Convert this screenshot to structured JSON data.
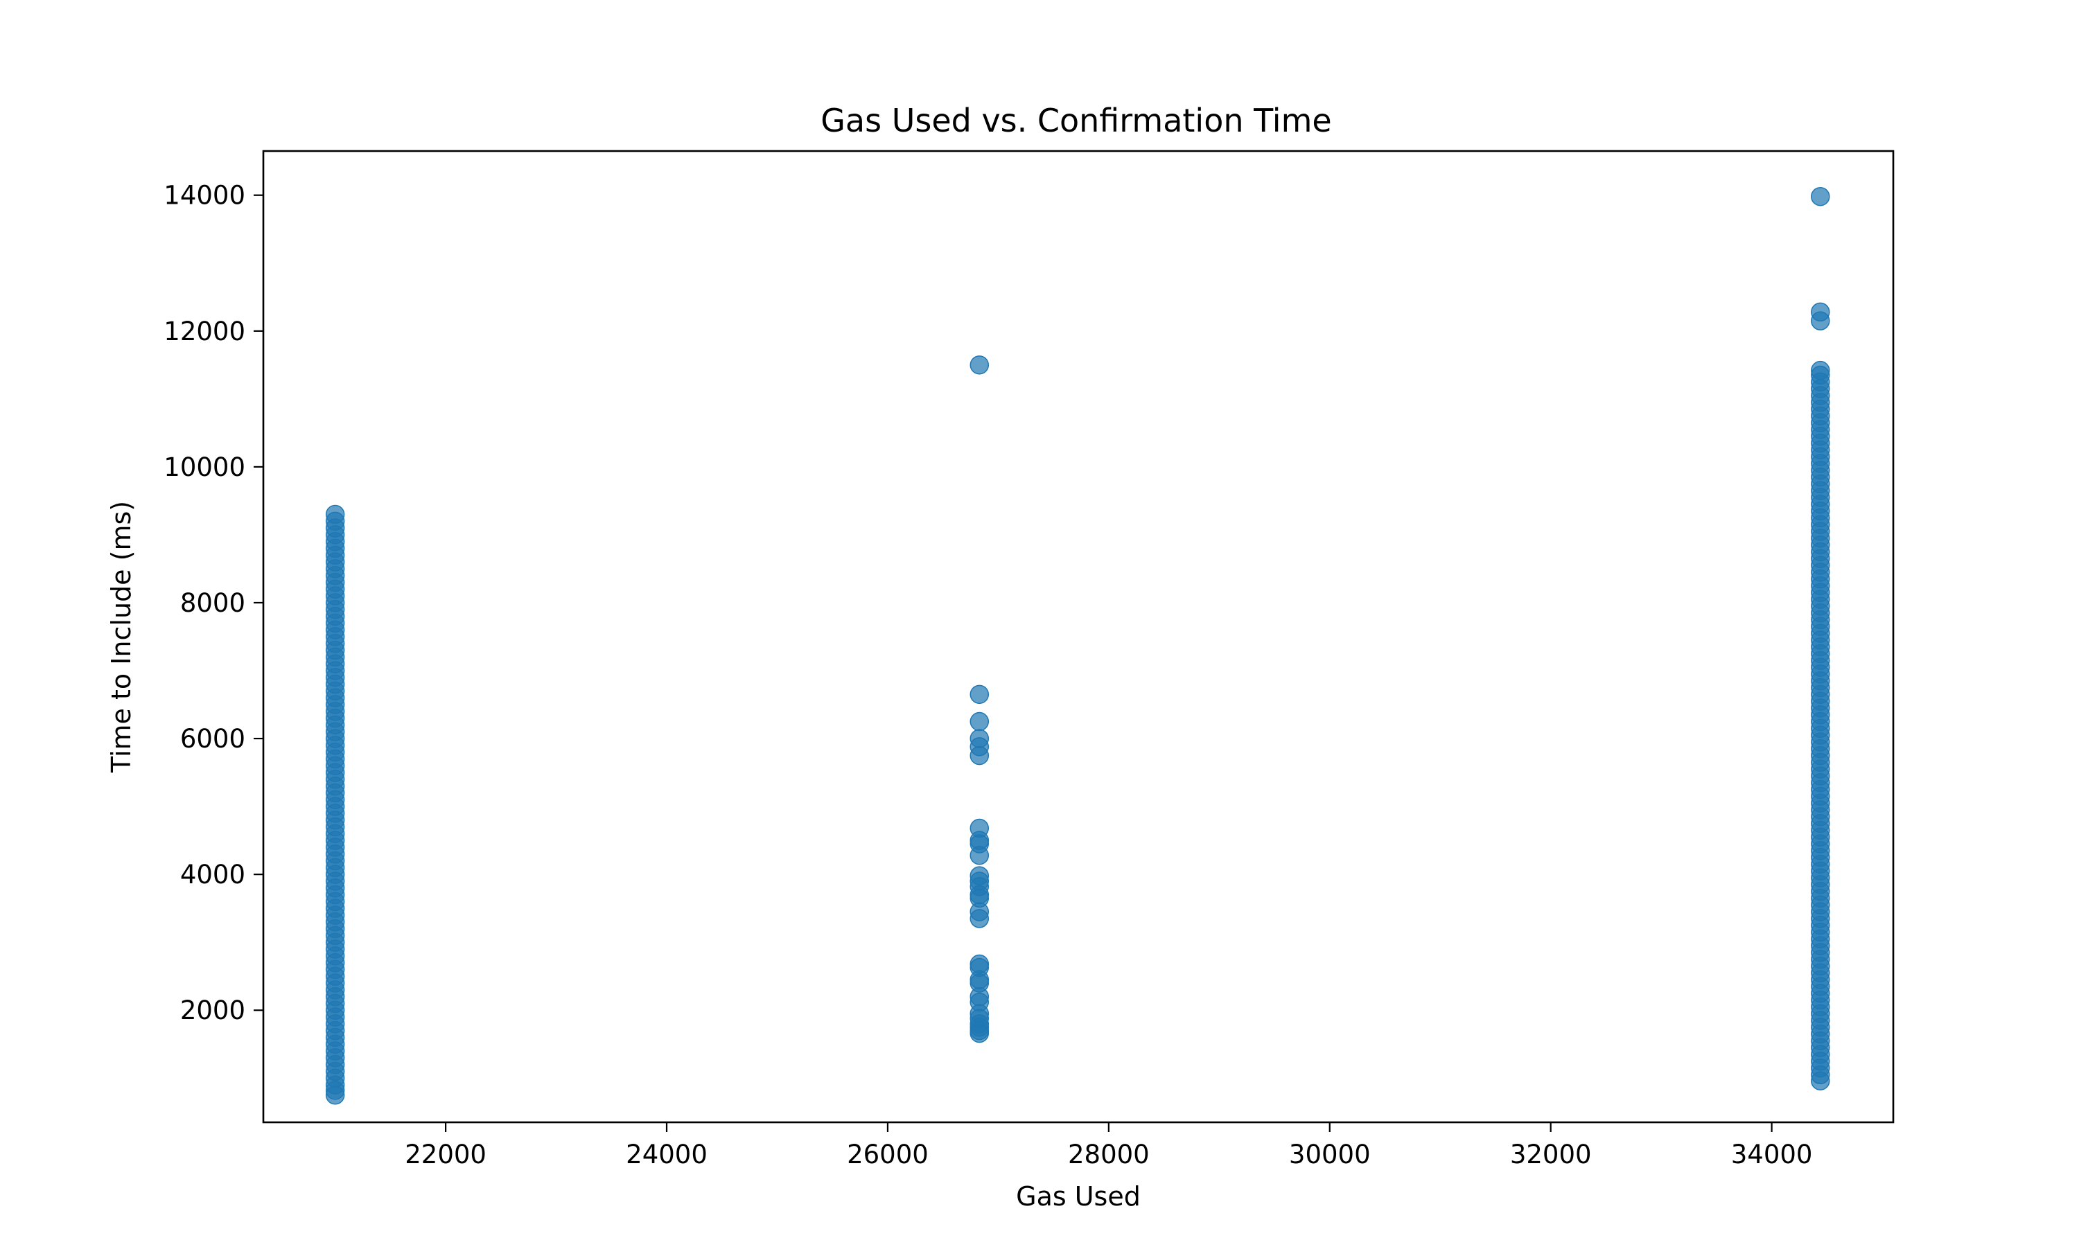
{
  "chart_data": {
    "type": "scatter",
    "title": "Gas Used vs. Confirmation Time",
    "xlabel": "Gas Used",
    "ylabel": "Time to Include (ms)",
    "xlim": [
      20350,
      35100
    ],
    "ylim": [
      350,
      14650
    ],
    "xticks": [
      {
        "value": 22000,
        "label": "22000"
      },
      {
        "value": 24000,
        "label": "24000"
      },
      {
        "value": 26000,
        "label": "26000"
      },
      {
        "value": 28000,
        "label": "28000"
      },
      {
        "value": 30000,
        "label": "30000"
      },
      {
        "value": 32000,
        "label": "32000"
      },
      {
        "value": 34000,
        "label": "34000"
      }
    ],
    "yticks": [
      {
        "value": 2000,
        "label": "2000"
      },
      {
        "value": 4000,
        "label": "4000"
      },
      {
        "value": 6000,
        "label": "6000"
      },
      {
        "value": 8000,
        "label": "8000"
      },
      {
        "value": 10000,
        "label": "10000"
      },
      {
        "value": 12000,
        "label": "12000"
      },
      {
        "value": 14000,
        "label": "14000"
      }
    ],
    "grid": false,
    "legend": "none",
    "marker_color": "#1f77b4",
    "x_groups": [
      21000,
      26830,
      34440
    ],
    "series": [
      {
        "points": [
          {
            "x": 21000,
            "y": 750
          },
          {
            "x": 21000,
            "y": 820
          },
          {
            "x": 21000,
            "y": 900
          },
          {
            "x": 21000,
            "y": 1000
          },
          {
            "x": 21000,
            "y": 1100
          },
          {
            "x": 21000,
            "y": 1200
          },
          {
            "x": 21000,
            "y": 1300
          },
          {
            "x": 21000,
            "y": 1400
          },
          {
            "x": 21000,
            "y": 1500
          },
          {
            "x": 21000,
            "y": 1600
          },
          {
            "x": 21000,
            "y": 1700
          },
          {
            "x": 21000,
            "y": 1800
          },
          {
            "x": 21000,
            "y": 1900
          },
          {
            "x": 21000,
            "y": 2000
          },
          {
            "x": 21000,
            "y": 2100
          },
          {
            "x": 21000,
            "y": 2200
          },
          {
            "x": 21000,
            "y": 2300
          },
          {
            "x": 21000,
            "y": 2400
          },
          {
            "x": 21000,
            "y": 2500
          },
          {
            "x": 21000,
            "y": 2600
          },
          {
            "x": 21000,
            "y": 2700
          },
          {
            "x": 21000,
            "y": 2800
          },
          {
            "x": 21000,
            "y": 2900
          },
          {
            "x": 21000,
            "y": 3000
          },
          {
            "x": 21000,
            "y": 3100
          },
          {
            "x": 21000,
            "y": 3200
          },
          {
            "x": 21000,
            "y": 3300
          },
          {
            "x": 21000,
            "y": 3400
          },
          {
            "x": 21000,
            "y": 3500
          },
          {
            "x": 21000,
            "y": 3600
          },
          {
            "x": 21000,
            "y": 3700
          },
          {
            "x": 21000,
            "y": 3800
          },
          {
            "x": 21000,
            "y": 3900
          },
          {
            "x": 21000,
            "y": 4000
          },
          {
            "x": 21000,
            "y": 4100
          },
          {
            "x": 21000,
            "y": 4200
          },
          {
            "x": 21000,
            "y": 4300
          },
          {
            "x": 21000,
            "y": 4400
          },
          {
            "x": 21000,
            "y": 4500
          },
          {
            "x": 21000,
            "y": 4600
          },
          {
            "x": 21000,
            "y": 4700
          },
          {
            "x": 21000,
            "y": 4800
          },
          {
            "x": 21000,
            "y": 4900
          },
          {
            "x": 21000,
            "y": 5000
          },
          {
            "x": 21000,
            "y": 5100
          },
          {
            "x": 21000,
            "y": 5200
          },
          {
            "x": 21000,
            "y": 5300
          },
          {
            "x": 21000,
            "y": 5400
          },
          {
            "x": 21000,
            "y": 5500
          },
          {
            "x": 21000,
            "y": 5600
          },
          {
            "x": 21000,
            "y": 5700
          },
          {
            "x": 21000,
            "y": 5800
          },
          {
            "x": 21000,
            "y": 5900
          },
          {
            "x": 21000,
            "y": 6000
          },
          {
            "x": 21000,
            "y": 6100
          },
          {
            "x": 21000,
            "y": 6200
          },
          {
            "x": 21000,
            "y": 6300
          },
          {
            "x": 21000,
            "y": 6400
          },
          {
            "x": 21000,
            "y": 6500
          },
          {
            "x": 21000,
            "y": 6600
          },
          {
            "x": 21000,
            "y": 6700
          },
          {
            "x": 21000,
            "y": 6800
          },
          {
            "x": 21000,
            "y": 6900
          },
          {
            "x": 21000,
            "y": 7000
          },
          {
            "x": 21000,
            "y": 7100
          },
          {
            "x": 21000,
            "y": 7200
          },
          {
            "x": 21000,
            "y": 7300
          },
          {
            "x": 21000,
            "y": 7400
          },
          {
            "x": 21000,
            "y": 7500
          },
          {
            "x": 21000,
            "y": 7600
          },
          {
            "x": 21000,
            "y": 7700
          },
          {
            "x": 21000,
            "y": 7800
          },
          {
            "x": 21000,
            "y": 7900
          },
          {
            "x": 21000,
            "y": 8000
          },
          {
            "x": 21000,
            "y": 8100
          },
          {
            "x": 21000,
            "y": 8200
          },
          {
            "x": 21000,
            "y": 8300
          },
          {
            "x": 21000,
            "y": 8400
          },
          {
            "x": 21000,
            "y": 8500
          },
          {
            "x": 21000,
            "y": 8600
          },
          {
            "x": 21000,
            "y": 8700
          },
          {
            "x": 21000,
            "y": 8800
          },
          {
            "x": 21000,
            "y": 8900
          },
          {
            "x": 21000,
            "y": 9000
          },
          {
            "x": 21000,
            "y": 9100
          },
          {
            "x": 21000,
            "y": 9200
          },
          {
            "x": 21000,
            "y": 9300
          },
          {
            "x": 26830,
            "y": 11500
          },
          {
            "x": 26830,
            "y": 6650
          },
          {
            "x": 26830,
            "y": 6250
          },
          {
            "x": 26830,
            "y": 6000
          },
          {
            "x": 26830,
            "y": 5880
          },
          {
            "x": 26830,
            "y": 5750
          },
          {
            "x": 26830,
            "y": 4680
          },
          {
            "x": 26830,
            "y": 4500
          },
          {
            "x": 26830,
            "y": 4450
          },
          {
            "x": 26830,
            "y": 4280
          },
          {
            "x": 26830,
            "y": 3980
          },
          {
            "x": 26830,
            "y": 3900
          },
          {
            "x": 26830,
            "y": 3820
          },
          {
            "x": 26830,
            "y": 3700
          },
          {
            "x": 26830,
            "y": 3650
          },
          {
            "x": 26830,
            "y": 3450
          },
          {
            "x": 26830,
            "y": 3350
          },
          {
            "x": 26830,
            "y": 2680
          },
          {
            "x": 26830,
            "y": 2630
          },
          {
            "x": 26830,
            "y": 2450
          },
          {
            "x": 26830,
            "y": 2400
          },
          {
            "x": 26830,
            "y": 2200
          },
          {
            "x": 26830,
            "y": 2120
          },
          {
            "x": 26830,
            "y": 1950
          },
          {
            "x": 26830,
            "y": 1880
          },
          {
            "x": 26830,
            "y": 1800
          },
          {
            "x": 26830,
            "y": 1750
          },
          {
            "x": 26830,
            "y": 1700
          },
          {
            "x": 26830,
            "y": 1660
          },
          {
            "x": 34440,
            "y": 13980
          },
          {
            "x": 34440,
            "y": 12280
          },
          {
            "x": 34440,
            "y": 12150
          },
          {
            "x": 34440,
            "y": 960
          },
          {
            "x": 34440,
            "y": 1050
          },
          {
            "x": 34440,
            "y": 1150
          },
          {
            "x": 34440,
            "y": 1250
          },
          {
            "x": 34440,
            "y": 1350
          },
          {
            "x": 34440,
            "y": 1450
          },
          {
            "x": 34440,
            "y": 1550
          },
          {
            "x": 34440,
            "y": 1650
          },
          {
            "x": 34440,
            "y": 1750
          },
          {
            "x": 34440,
            "y": 1850
          },
          {
            "x": 34440,
            "y": 1950
          },
          {
            "x": 34440,
            "y": 2050
          },
          {
            "x": 34440,
            "y": 2150
          },
          {
            "x": 34440,
            "y": 2250
          },
          {
            "x": 34440,
            "y": 2350
          },
          {
            "x": 34440,
            "y": 2450
          },
          {
            "x": 34440,
            "y": 2550
          },
          {
            "x": 34440,
            "y": 2650
          },
          {
            "x": 34440,
            "y": 2750
          },
          {
            "x": 34440,
            "y": 2850
          },
          {
            "x": 34440,
            "y": 2950
          },
          {
            "x": 34440,
            "y": 3050
          },
          {
            "x": 34440,
            "y": 3150
          },
          {
            "x": 34440,
            "y": 3250
          },
          {
            "x": 34440,
            "y": 3350
          },
          {
            "x": 34440,
            "y": 3450
          },
          {
            "x": 34440,
            "y": 3550
          },
          {
            "x": 34440,
            "y": 3650
          },
          {
            "x": 34440,
            "y": 3750
          },
          {
            "x": 34440,
            "y": 3850
          },
          {
            "x": 34440,
            "y": 3950
          },
          {
            "x": 34440,
            "y": 4050
          },
          {
            "x": 34440,
            "y": 4150
          },
          {
            "x": 34440,
            "y": 4250
          },
          {
            "x": 34440,
            "y": 4350
          },
          {
            "x": 34440,
            "y": 4450
          },
          {
            "x": 34440,
            "y": 4550
          },
          {
            "x": 34440,
            "y": 4650
          },
          {
            "x": 34440,
            "y": 4750
          },
          {
            "x": 34440,
            "y": 4850
          },
          {
            "x": 34440,
            "y": 4950
          },
          {
            "x": 34440,
            "y": 5050
          },
          {
            "x": 34440,
            "y": 5150
          },
          {
            "x": 34440,
            "y": 5250
          },
          {
            "x": 34440,
            "y": 5350
          },
          {
            "x": 34440,
            "y": 5450
          },
          {
            "x": 34440,
            "y": 5550
          },
          {
            "x": 34440,
            "y": 5650
          },
          {
            "x": 34440,
            "y": 5750
          },
          {
            "x": 34440,
            "y": 5850
          },
          {
            "x": 34440,
            "y": 5950
          },
          {
            "x": 34440,
            "y": 6050
          },
          {
            "x": 34440,
            "y": 6150
          },
          {
            "x": 34440,
            "y": 6250
          },
          {
            "x": 34440,
            "y": 6350
          },
          {
            "x": 34440,
            "y": 6450
          },
          {
            "x": 34440,
            "y": 6550
          },
          {
            "x": 34440,
            "y": 6650
          },
          {
            "x": 34440,
            "y": 6750
          },
          {
            "x": 34440,
            "y": 6850
          },
          {
            "x": 34440,
            "y": 6950
          },
          {
            "x": 34440,
            "y": 7050
          },
          {
            "x": 34440,
            "y": 7150
          },
          {
            "x": 34440,
            "y": 7250
          },
          {
            "x": 34440,
            "y": 7350
          },
          {
            "x": 34440,
            "y": 7450
          },
          {
            "x": 34440,
            "y": 7550
          },
          {
            "x": 34440,
            "y": 7650
          },
          {
            "x": 34440,
            "y": 7750
          },
          {
            "x": 34440,
            "y": 7850
          },
          {
            "x": 34440,
            "y": 7950
          },
          {
            "x": 34440,
            "y": 8050
          },
          {
            "x": 34440,
            "y": 8150
          },
          {
            "x": 34440,
            "y": 8250
          },
          {
            "x": 34440,
            "y": 8350
          },
          {
            "x": 34440,
            "y": 8450
          },
          {
            "x": 34440,
            "y": 8550
          },
          {
            "x": 34440,
            "y": 8650
          },
          {
            "x": 34440,
            "y": 8750
          },
          {
            "x": 34440,
            "y": 8850
          },
          {
            "x": 34440,
            "y": 8950
          },
          {
            "x": 34440,
            "y": 9050
          },
          {
            "x": 34440,
            "y": 9150
          },
          {
            "x": 34440,
            "y": 9250
          },
          {
            "x": 34440,
            "y": 9350
          },
          {
            "x": 34440,
            "y": 9450
          },
          {
            "x": 34440,
            "y": 9550
          },
          {
            "x": 34440,
            "y": 9650
          },
          {
            "x": 34440,
            "y": 9750
          },
          {
            "x": 34440,
            "y": 9850
          },
          {
            "x": 34440,
            "y": 9950
          },
          {
            "x": 34440,
            "y": 10050
          },
          {
            "x": 34440,
            "y": 10150
          },
          {
            "x": 34440,
            "y": 10250
          },
          {
            "x": 34440,
            "y": 10350
          },
          {
            "x": 34440,
            "y": 10450
          },
          {
            "x": 34440,
            "y": 10550
          },
          {
            "x": 34440,
            "y": 10650
          },
          {
            "x": 34440,
            "y": 10750
          },
          {
            "x": 34440,
            "y": 10850
          },
          {
            "x": 34440,
            "y": 10950
          },
          {
            "x": 34440,
            "y": 11050
          },
          {
            "x": 34440,
            "y": 11150
          },
          {
            "x": 34440,
            "y": 11250
          },
          {
            "x": 34440,
            "y": 11350
          },
          {
            "x": 34440,
            "y": 11420
          }
        ]
      }
    ]
  }
}
